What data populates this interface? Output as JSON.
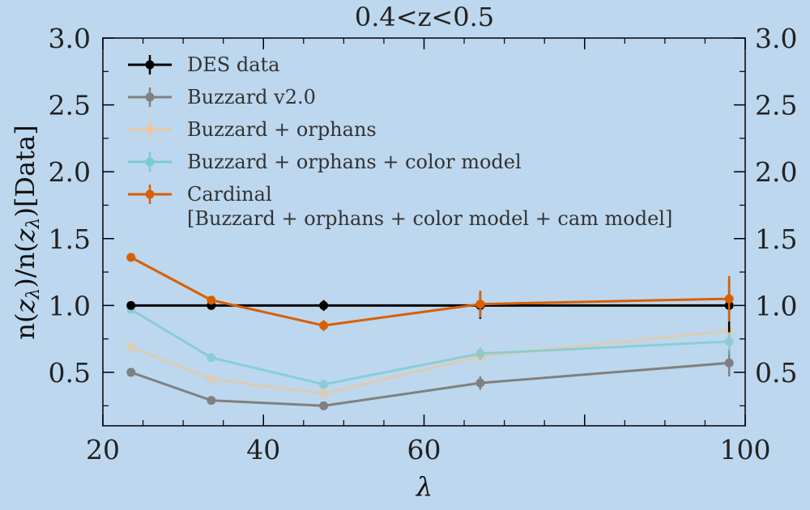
{
  "chart_data": {
    "type": "line",
    "title": "0.4<z<0.5",
    "xlabel": "λ",
    "ylabel": "n(zλ)/n(zλ)[Data]",
    "ylabel_parts": {
      "a": "n(",
      "b": "z",
      "c": "λ",
      "d": ")/n(",
      "e": "z",
      "f": "λ",
      "g": ")[Data]"
    },
    "xlim": [
      20,
      100
    ],
    "ylim": [
      0.1,
      3.0
    ],
    "x_ticks": [
      20,
      40,
      60,
      80,
      100
    ],
    "x_tick_labels": [
      "20",
      "40",
      "60",
      "",
      "100"
    ],
    "y_ticks": [
      0.5,
      1.0,
      1.5,
      2.0,
      2.5,
      3.0
    ],
    "y_tick_labels": [
      "0.5",
      "1.0",
      "1.5",
      "2.0",
      "2.5",
      "3.0"
    ],
    "grid": false,
    "legend_position": "top-left",
    "x": [
      23.5,
      33.5,
      47.5,
      67.0,
      98.0
    ],
    "series": [
      {
        "name": "Buzzard v2.0",
        "color": "#808080",
        "opacity": 1,
        "values": [
          0.5,
          0.29,
          0.25,
          0.42,
          0.57
        ],
        "errors": [
          0.02,
          0.02,
          0.02,
          0.05,
          0.1
        ]
      },
      {
        "name": "Buzzard + orphans",
        "color": "#f3c48e",
        "opacity": 0.6,
        "values": [
          0.69,
          0.45,
          0.34,
          0.62,
          0.81
        ],
        "errors": [
          0.02,
          0.02,
          0.02,
          0.05,
          0.1
        ]
      },
      {
        "name": "Buzzard + orphans + color model",
        "color": "#5fc6c6",
        "opacity": 0.55,
        "values": [
          0.97,
          0.61,
          0.41,
          0.64,
          0.73
        ],
        "errors": [
          0.02,
          0.02,
          0.02,
          0.05,
          0.1
        ]
      },
      {
        "name": "DES data",
        "color": "#000000",
        "opacity": 1,
        "values": [
          1.0,
          1.0,
          1.0,
          1.0,
          1.0
        ],
        "errors": [
          0.01,
          0.02,
          0.04,
          0.1,
          0.2
        ]
      },
      {
        "name": "Cardinal",
        "name_line2": "[Buzzard + orphans + color model + cam model]",
        "color": "#d95f02",
        "opacity": 1,
        "values": [
          1.36,
          1.04,
          0.85,
          1.01,
          1.05
        ],
        "errors": [
          0.02,
          0.02,
          0.04,
          0.1,
          0.17
        ]
      }
    ],
    "legend_order": [
      3,
      0,
      1,
      2,
      4
    ]
  }
}
